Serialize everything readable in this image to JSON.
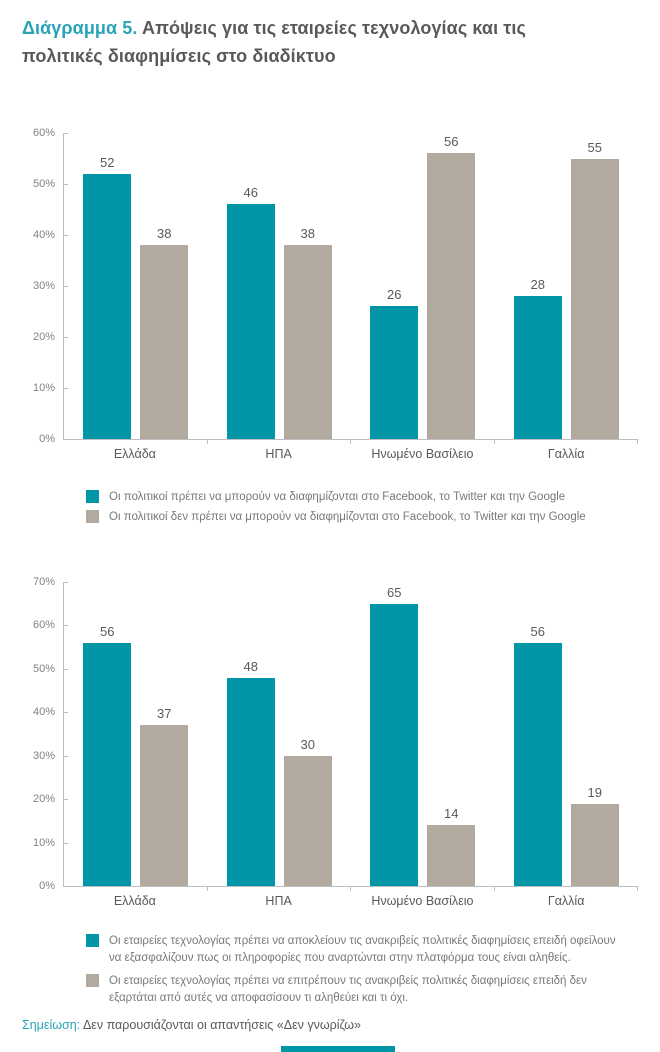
{
  "page": {
    "title": {
      "accent": "Διάγραμμα 5.",
      "rest": "Απόψεις για τις εταιρείες τεχνολογίας και τις πολιτικές διαφημίσεις στο διαδίκτυο"
    },
    "note": {
      "label": "Σημείωση:",
      "text": "Δεν παρουσιάζονται οι απαντήσεις «Δεν γνωρίζω»"
    }
  },
  "colors": {
    "teal": "#0096a5",
    "taupe": "#b2aa9f",
    "accent_text": "#29a3b5",
    "dark_text": "#58595b",
    "axis_text": "#808285",
    "axis_line": "#bcbec0",
    "legend_text": "#77787b"
  },
  "chart_data": [
    {
      "type": "bar",
      "title": "",
      "categories": [
        "Ελλάδα",
        "ΗΠΑ",
        "Ηνωμένο Βασίλειο",
        "Γαλλία"
      ],
      "series": [
        {
          "name": "Οι πολιτικοί πρέπει να μπορούν να διαφημίζονται στο Facebook, το Twitter και την Google",
          "color": "#0096a5",
          "values": [
            52,
            46,
            26,
            28
          ]
        },
        {
          "name": "Οι πολιτικοί δεν πρέπει να μπορούν να διαφημίζονται στο Facebook, το Twitter και την Google",
          "color": "#b2aa9f",
          "values": [
            38,
            38,
            56,
            55
          ]
        }
      ],
      "xlabel": "",
      "ylabel": "",
      "ylim": [
        0,
        60
      ],
      "yticks": [
        "60%",
        "50%",
        "40%",
        "30%",
        "20%",
        "10%",
        "0%"
      ],
      "grid": false,
      "value_labels": true,
      "legend_position": "below"
    },
    {
      "type": "bar",
      "title": "",
      "categories": [
        "Ελλάδα",
        "ΗΠΑ",
        "Ηνωμένο Βασίλειο",
        "Γαλλία"
      ],
      "series": [
        {
          "name": "Οι εταιρείες τεχνολογίας πρέπει να αποκλείουν τις ανακριβείς πολιτικές διαφημίσεις επειδή οφείλουν να εξασφαλίζουν πως οι πληροφορίες που αναρτώνται στην πλατφόρμα τους είναι αληθείς.",
          "color": "#0096a5",
          "values": [
            56,
            48,
            65,
            56
          ]
        },
        {
          "name": "Οι εταιρείες τεχνολογίας πρέπει να επιτρέπουν τις ανακριβείς πολιτικές διαφημίσεις επειδή δεν εξαρτάται από αυτές να αποφασίσουν τι αληθεύει και τι όχι.",
          "color": "#b2aa9f",
          "values": [
            37,
            30,
            14,
            19
          ]
        }
      ],
      "xlabel": "",
      "ylabel": "",
      "ylim": [
        0,
        70
      ],
      "yticks": [
        "70%",
        "60%",
        "50%",
        "40%",
        "30%",
        "20%",
        "10%",
        "0%"
      ],
      "grid": false,
      "value_labels": true,
      "legend_position": "below"
    }
  ]
}
